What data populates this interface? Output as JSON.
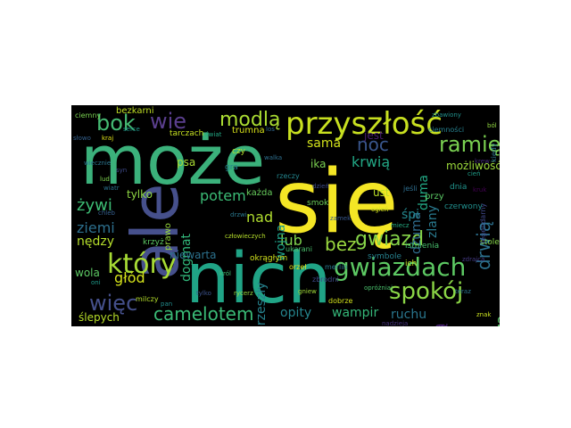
{
  "word_cloud": {
    "words": [
      {
        "text": "może",
        "color": "#3bb17b"
      },
      {
        "text": "się",
        "color": "#f4e625"
      },
      {
        "text": "ale",
        "color": "#46508c"
      },
      {
        "text": "nich",
        "color": "#20a486"
      },
      {
        "text": "przyszłość",
        "color": "#c8e020"
      },
      {
        "text": "który",
        "color": "#a7db35"
      },
      {
        "text": "gwiazdach",
        "color": "#5dc963"
      },
      {
        "text": "spokój",
        "color": "#8bd646"
      },
      {
        "text": "camelotem",
        "color": "#3aba76"
      },
      {
        "text": "ramię",
        "color": "#7ad151"
      },
      {
        "text": "bok",
        "color": "#45ba73"
      },
      {
        "text": "wie",
        "color": "#5b3f8f"
      },
      {
        "text": "więc",
        "color": "#45508b"
      },
      {
        "text": "modlą",
        "color": "#aadc32"
      },
      {
        "text": "gwiazd",
        "color": "#86d549"
      },
      {
        "text": "bez",
        "color": "#9ad83f"
      },
      {
        "text": "noc",
        "color": "#39568c"
      },
      {
        "text": "drwią",
        "color": "#2c718e"
      },
      {
        "text": "potem",
        "color": "#3bbb75"
      },
      {
        "text": "wampir",
        "color": "#35b779"
      },
      {
        "text": "ruchu",
        "color": "#2a768e"
      },
      {
        "text": "ludzką",
        "color": "#482173"
      },
      {
        "text": "nędza",
        "color": "#56c667"
      },
      {
        "text": "opity",
        "color": "#25858e"
      },
      {
        "text": "krwią",
        "color": "#22a785"
      },
      {
        "text": "lub",
        "color": "#7fd34e"
      },
      {
        "text": "nad",
        "color": "#b0dd2f"
      },
      {
        "text": "żywi",
        "color": "#3dbc74"
      },
      {
        "text": "ziemi",
        "color": "#2d708e"
      },
      {
        "text": "głód",
        "color": "#d5e21a"
      },
      {
        "text": "nędzy",
        "color": "#b5de2b"
      },
      {
        "text": "wola",
        "color": "#5cc863"
      },
      {
        "text": "ślepych",
        "color": "#b8de29"
      },
      {
        "text": "dżuma",
        "color": "#2f6c8e"
      },
      {
        "text": "zlany",
        "color": "#29798e"
      },
      {
        "text": "śpi",
        "color": "#24878e"
      },
      {
        "text": "wojna",
        "color": "#1fa088"
      },
      {
        "text": "dogmat",
        "color": "#32b67a"
      },
      {
        "text": "przeszły",
        "color": "#26828e"
      },
      {
        "text": "duma",
        "color": "#22a884"
      },
      {
        "text": "sama",
        "color": "#d2e21b"
      },
      {
        "text": "ika",
        "color": "#7ad151"
      },
      {
        "text": "tylko",
        "color": "#8fd744"
      },
      {
        "text": "psa",
        "color": "#a8db34"
      },
      {
        "text": "niewarta",
        "color": "#2c728e"
      },
      {
        "text": "możliwość",
        "color": "#9cd93b"
      },
      {
        "text": "ust",
        "color": "#bade28"
      },
      {
        "text": "każda",
        "color": "#67cc5c"
      },
      {
        "text": "prawo",
        "color": "#98d83e"
      },
      {
        "text": "bezkarni",
        "color": "#c0df25"
      },
      {
        "text": "trumna",
        "color": "#d8e219"
      },
      {
        "text": "tarczach",
        "color": "#c5e021"
      },
      {
        "text": "czy",
        "color": "#b2dd2d"
      },
      {
        "text": "gra",
        "color": "#25848e"
      },
      {
        "text": "jest",
        "color": "#481d6f"
      },
      {
        "text": "istnienia",
        "color": "#48c16e"
      },
      {
        "text": "przy",
        "color": "#5ac864"
      },
      {
        "text": "czerwony",
        "color": "#218f8d"
      },
      {
        "text": "stole",
        "color": "#86d549"
      },
      {
        "text": "smok",
        "color": "#6ccd5a"
      },
      {
        "text": "okrągłym",
        "color": "#d0e11c"
      },
      {
        "text": "symbole",
        "color": "#26818e"
      },
      {
        "text": "krzyż",
        "color": "#5cc863"
      },
      {
        "text": "dnia",
        "color": "#20938c"
      },
      {
        "text": "ciemności",
        "color": "#27808e"
      },
      {
        "text": "legendarny",
        "color": "#3f4889"
      },
      {
        "text": "kiedy",
        "color": "#2d718e"
      },
      {
        "text": "ciemny",
        "color": "#7ad151"
      },
      {
        "text": "merlin",
        "color": "#2a778e"
      },
      {
        "text": "ukarani",
        "color": "#4ac16d"
      },
      {
        "text": "orzeł",
        "color": "#e5e419"
      },
      {
        "text": "zbrodni",
        "color": "#3e4a89"
      },
      {
        "text": "milczy",
        "color": "#b5de2b"
      },
      {
        "text": "jeśli",
        "color": "#2e6e8e"
      },
      {
        "text": "rzeczy",
        "color": "#24868e"
      },
      {
        "text": "dobrze",
        "color": "#d2e21b"
      },
      {
        "text": "nadzieja",
        "color": "#46327e"
      },
      {
        "text": "wiecznie",
        "color": "#2b758e"
      },
      {
        "text": "zdrajca",
        "color": "#443983"
      },
      {
        "text": "opróżniaj",
        "color": "#4ac16d"
      },
      {
        "text": "zbawiony",
        "color": "#21918c"
      },
      {
        "text": "gniew",
        "color": "#a0da39"
      },
      {
        "text": "kraj",
        "color": "#e2e418"
      },
      {
        "text": "chleb",
        "color": "#355f8d"
      },
      {
        "text": "serce",
        "color": "#1f958b"
      },
      {
        "text": "słowo",
        "color": "#34608d"
      },
      {
        "text": "człowieczych",
        "color": "#b5de2b"
      },
      {
        "text": "drzwi",
        "color": "#2a788e"
      },
      {
        "text": "król",
        "color": "#40bd72"
      },
      {
        "text": "zamek",
        "color": "#38588c"
      },
      {
        "text": "rycerz",
        "color": "#95d840"
      },
      {
        "text": "tylko",
        "color": "#3b528b"
      },
      {
        "text": "oni",
        "color": "#1e9b8a"
      },
      {
        "text": "teraz",
        "color": "#2b748e"
      },
      {
        "text": "ich",
        "color": "#c2df23"
      },
      {
        "text": "dzień",
        "color": "#3e4c8a"
      },
      {
        "text": "walka",
        "color": "#2e6f8e"
      },
      {
        "text": "świat",
        "color": "#22a884"
      },
      {
        "text": "lud",
        "color": "#7fd34e"
      },
      {
        "text": "kruk",
        "color": "#440154"
      },
      {
        "text": "wiatr",
        "color": "#2c728e"
      },
      {
        "text": "ogień",
        "color": "#d0e11c"
      },
      {
        "text": "miecz",
        "color": "#25ac82"
      },
      {
        "text": "krew",
        "color": "#472d7b"
      },
      {
        "text": "cień",
        "color": "#1f9e89"
      },
      {
        "text": "znak",
        "color": "#c8e020"
      },
      {
        "text": "pan",
        "color": "#228d8d"
      },
      {
        "text": "syn",
        "color": "#3e4989"
      },
      {
        "text": "ból",
        "color": "#92d741"
      },
      {
        "text": "los",
        "color": "#31688e"
      }
    ]
  }
}
